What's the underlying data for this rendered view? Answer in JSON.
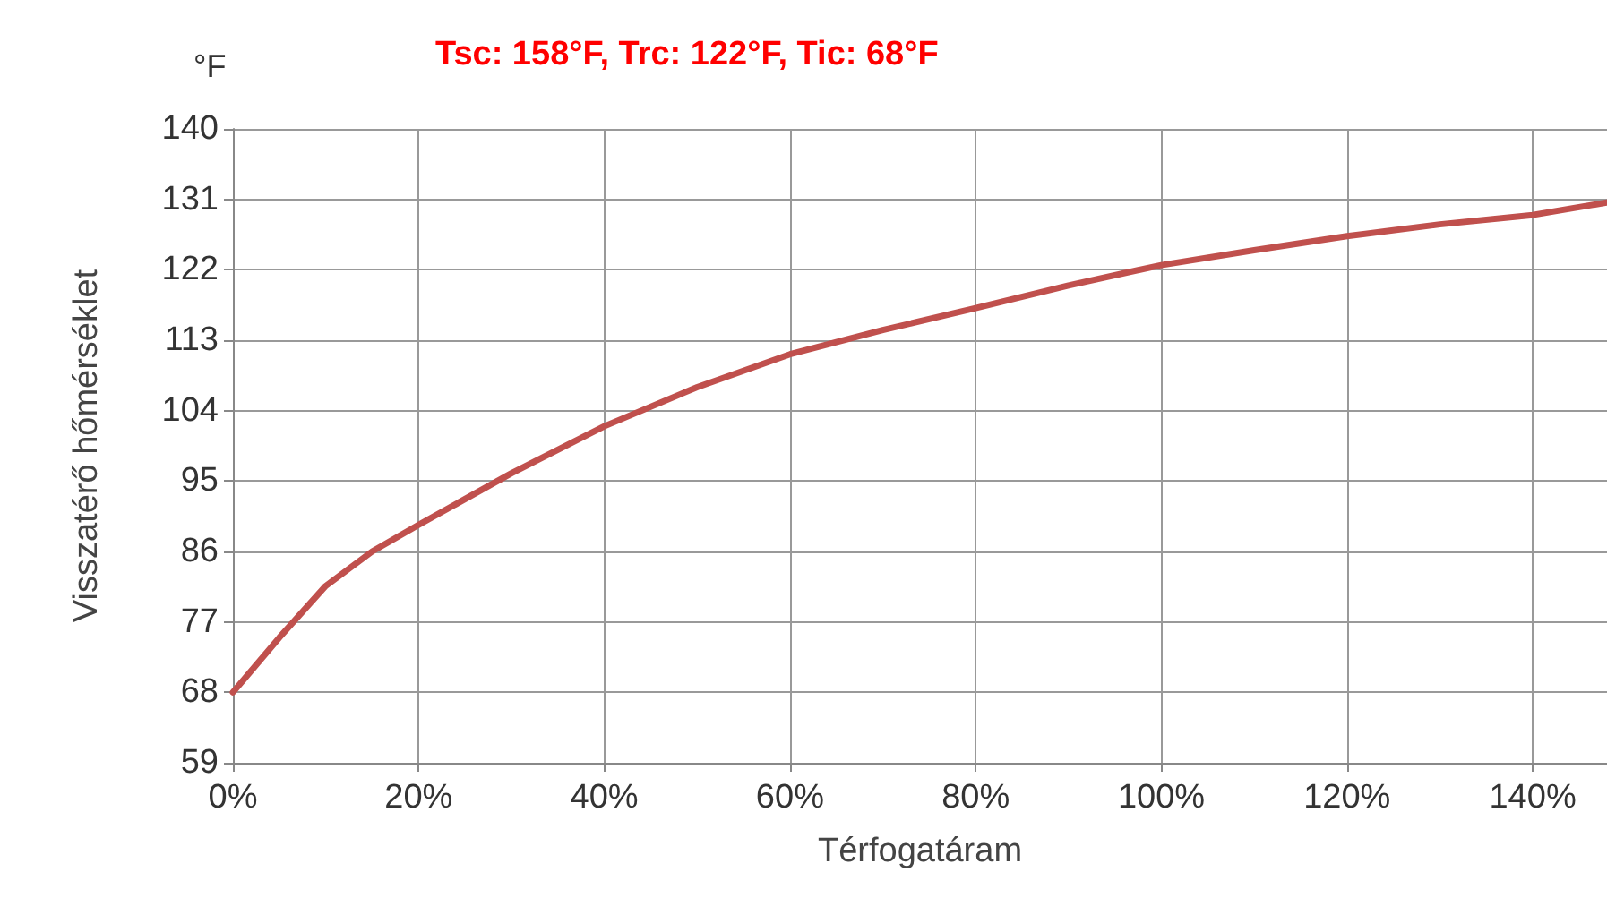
{
  "chart_data": {
    "type": "line",
    "title": "Tsc: 158°F, Trc: 122°F, Tic: 68°F",
    "xlabel": "Térfogatáram",
    "ylabel": "Visszatérő hőmérséklet",
    "annotations": [
      "°F"
    ],
    "series": [
      {
        "color": "#c0504d",
        "x": [
          0,
          5,
          10,
          15,
          20,
          30,
          40,
          50,
          60,
          70,
          80,
          90,
          100,
          110,
          120,
          130,
          140,
          148
        ],
        "values": [
          68,
          75,
          81.6,
          86,
          89.4,
          96,
          102,
          107,
          111.2,
          114.3,
          117.1,
          120,
          122.6,
          124.5,
          126.3,
          127.8,
          129,
          130.6
        ]
      }
    ],
    "xlim": [
      0,
      148
    ],
    "xticks": [
      {
        "value": 0,
        "label": "0%"
      },
      {
        "value": 20,
        "label": "20%"
      },
      {
        "value": 40,
        "label": "40%"
      },
      {
        "value": 60,
        "label": "60%"
      },
      {
        "value": 80,
        "label": "80%"
      },
      {
        "value": 100,
        "label": "100%"
      },
      {
        "value": 120,
        "label": "120%"
      },
      {
        "value": 140,
        "label": "140%"
      }
    ],
    "ylim": [
      59,
      140
    ],
    "yticks": [
      59,
      68,
      77,
      86,
      95,
      104,
      113,
      122,
      131,
      140
    ],
    "grid": true,
    "marker": "none",
    "line_style": "solid"
  }
}
